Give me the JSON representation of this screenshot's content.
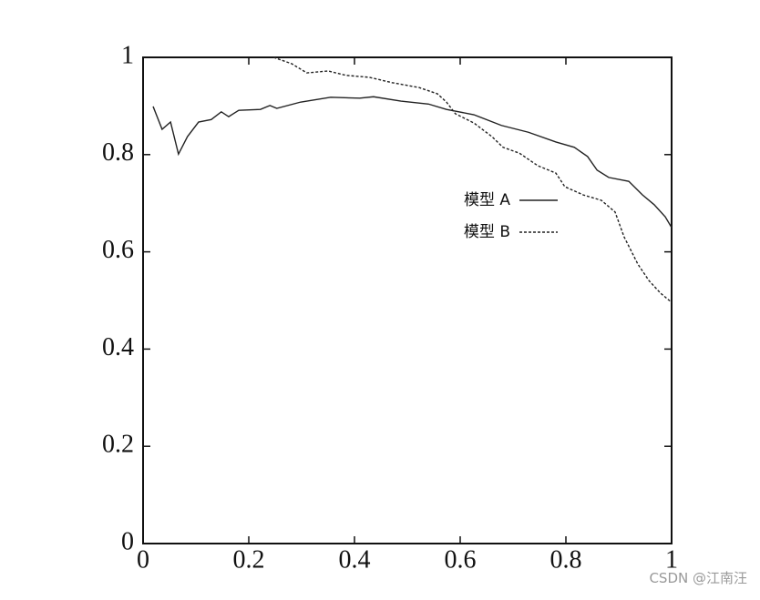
{
  "chart_data": {
    "type": "line",
    "xlim": [
      0,
      1
    ],
    "ylim": [
      0,
      1
    ],
    "xticks": [
      0,
      0.2,
      0.4,
      0.6,
      0.8,
      1
    ],
    "yticks": [
      0,
      0.2,
      0.4,
      0.6,
      0.8,
      1
    ],
    "legend": "right",
    "series": [
      {
        "name": "模型 A",
        "color": "#222222",
        "line_style": "solid",
        "x": [
          0.019,
          0.036,
          0.052,
          0.067,
          0.084,
          0.105,
          0.129,
          0.148,
          0.162,
          0.181,
          0.222,
          0.24,
          0.253,
          0.298,
          0.355,
          0.41,
          0.436,
          0.488,
          0.54,
          0.574,
          0.626,
          0.678,
          0.729,
          0.781,
          0.816,
          0.841,
          0.859,
          0.881,
          0.919,
          0.945,
          0.967,
          0.988,
          1
        ],
        "values": [
          0.899,
          0.852,
          0.867,
          0.801,
          0.837,
          0.867,
          0.872,
          0.888,
          0.878,
          0.891,
          0.893,
          0.901,
          0.895,
          0.908,
          0.918,
          0.916,
          0.919,
          0.91,
          0.904,
          0.893,
          0.882,
          0.86,
          0.846,
          0.826,
          0.815,
          0.796,
          0.768,
          0.753,
          0.745,
          0.717,
          0.697,
          0.672,
          0.65
        ]
      },
      {
        "name": "模型 B",
        "color": "#222222",
        "line_style": "dashed",
        "x": [
          0.247,
          0.281,
          0.31,
          0.35,
          0.384,
          0.428,
          0.471,
          0.522,
          0.557,
          0.574,
          0.591,
          0.626,
          0.66,
          0.681,
          0.712,
          0.747,
          0.781,
          0.798,
          0.833,
          0.867,
          0.893,
          0.91,
          0.936,
          0.957,
          0.979,
          1
        ],
        "values": [
          1,
          0.987,
          0.968,
          0.972,
          0.963,
          0.959,
          0.948,
          0.938,
          0.925,
          0.908,
          0.884,
          0.865,
          0.837,
          0.815,
          0.803,
          0.777,
          0.762,
          0.734,
          0.717,
          0.706,
          0.682,
          0.631,
          0.575,
          0.541,
          0.515,
          0.496
        ]
      }
    ],
    "watermark": "CSDN @江南汪"
  }
}
